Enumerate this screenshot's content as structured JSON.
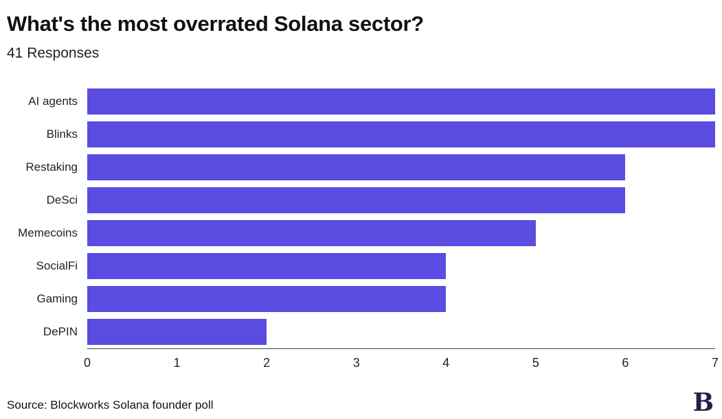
{
  "header": {
    "title": "What's the most overrated Solana sector?",
    "subtitle": "41 Responses"
  },
  "chart_data": {
    "type": "bar",
    "orientation": "horizontal",
    "title": "What's the most overrated Solana sector?",
    "subtitle": "41 Responses",
    "categories": [
      "AI agents",
      "Blinks",
      "Restaking",
      "DeSci",
      "Memecoins",
      "SocialFi",
      "Gaming",
      "DePIN"
    ],
    "values": [
      7,
      7,
      6,
      6,
      5,
      4,
      4,
      2
    ],
    "xlabel": "",
    "ylabel": "",
    "xlim": [
      0,
      7
    ],
    "xticks": [
      0,
      1,
      2,
      3,
      4,
      5,
      6,
      7
    ],
    "grid": false,
    "legend": false,
    "bar_color": "#5a4ce0"
  },
  "footer": {
    "source": "Source: Blockworks Solana founder poll",
    "logo_letter": "B"
  },
  "colors": {
    "bar": "#5a4ce0",
    "text": "#1a1a1a",
    "axis": "#444444",
    "logo": "#241f4e"
  }
}
